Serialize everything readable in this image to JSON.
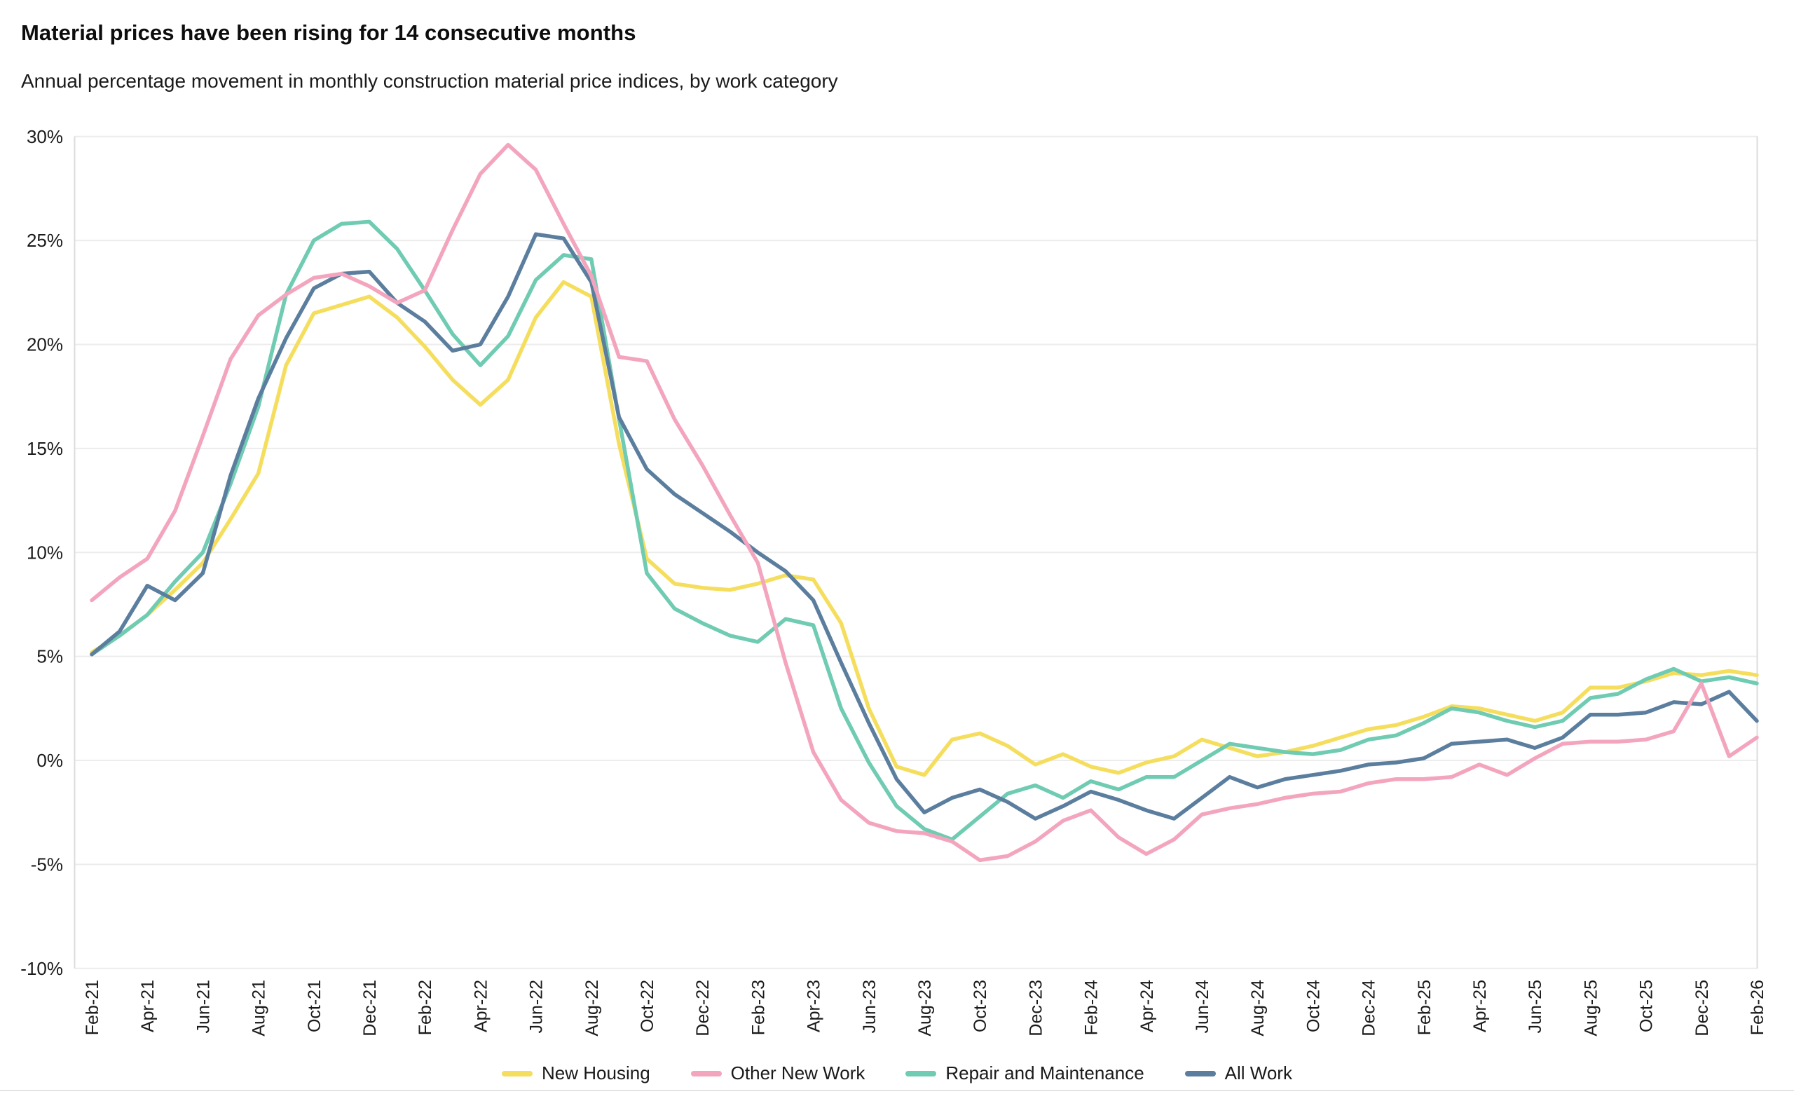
{
  "header": {
    "title": "Material prices have been rising for 14 consecutive months",
    "subtitle": "Annual percentage movement in monthly construction material price indices, by work category"
  },
  "chart_data": {
    "type": "line",
    "title": "Material prices have been rising for 14 consecutive months",
    "subtitle": "Annual percentage movement in monthly construction material price indices, by work category",
    "xlabel": "",
    "ylabel": "",
    "ylim": [
      -10,
      30
    ],
    "grid": true,
    "legend_position": "bottom",
    "y_ticks": [
      30,
      25,
      20,
      15,
      10,
      5,
      0,
      -5,
      -10
    ],
    "y_tick_suffix": "%",
    "x_tick_labels": [
      "Feb-21",
      "Apr-21",
      "Jun-21",
      "Aug-21",
      "Oct-21",
      "Dec-21",
      "Feb-22",
      "Apr-22",
      "Jun-22",
      "Aug-22",
      "Oct-22",
      "Dec-22",
      "Feb-23",
      "Apr-23",
      "Jun-23",
      "Aug-23",
      "Oct-23",
      "Dec-23",
      "Feb-24",
      "Apr-24",
      "Jun-24",
      "Aug-24",
      "Oct-24",
      "Dec-24",
      "Feb-25",
      "Apr-25",
      "Jun-25",
      "Aug-25",
      "Oct-25",
      "Dec-25",
      "Feb-26"
    ],
    "months": [
      "Feb-21",
      "Mar-21",
      "Apr-21",
      "May-21",
      "Jun-21",
      "Jul-21",
      "Aug-21",
      "Sep-21",
      "Oct-21",
      "Nov-21",
      "Dec-21",
      "Jan-22",
      "Feb-22",
      "Mar-22",
      "Apr-22",
      "May-22",
      "Jun-22",
      "Jul-22",
      "Aug-22",
      "Sep-22",
      "Oct-22",
      "Nov-22",
      "Dec-22",
      "Jan-23",
      "Feb-23",
      "Mar-23",
      "Apr-23",
      "May-23",
      "Jun-23",
      "Jul-23",
      "Aug-23",
      "Sep-23",
      "Oct-23",
      "Nov-23",
      "Dec-23",
      "Jan-24",
      "Feb-24",
      "Mar-24",
      "Apr-24",
      "May-24",
      "Jun-24",
      "Jul-24",
      "Aug-24",
      "Sep-24",
      "Oct-24",
      "Nov-24",
      "Dec-24",
      "Jan-25",
      "Feb-25",
      "Mar-25",
      "Apr-25",
      "May-25",
      "Jun-25",
      "Jul-25",
      "Aug-25",
      "Sep-25",
      "Oct-25",
      "Nov-25",
      "Dec-25",
      "Jan-26",
      "Feb-26"
    ],
    "series": [
      {
        "name": "New Housing",
        "color": "#F5DE5E",
        "values": [
          5.2,
          6.0,
          7.0,
          8.2,
          9.5,
          11.6,
          13.8,
          19.0,
          21.5,
          21.9,
          22.3,
          21.3,
          19.9,
          18.3,
          17.1,
          18.3,
          21.3,
          23.0,
          22.3,
          15.2,
          9.7,
          8.5,
          8.3,
          8.2,
          8.5,
          8.9,
          8.7,
          6.6,
          2.5,
          -0.3,
          -0.7,
          1.0,
          1.3,
          0.7,
          -0.2,
          0.3,
          -0.3,
          -0.6,
          -0.1,
          0.2,
          1.0,
          0.6,
          0.2,
          0.4,
          0.7,
          1.1,
          1.5,
          1.7,
          2.1,
          2.6,
          2.5,
          2.2,
          1.9,
          2.3,
          3.5,
          3.5,
          3.8,
          4.2,
          4.1,
          4.3,
          4.1
        ]
      },
      {
        "name": "Other New Work",
        "color": "#F4A5BE",
        "values": [
          7.7,
          8.8,
          9.7,
          12.0,
          15.6,
          19.3,
          21.4,
          22.4,
          23.2,
          23.4,
          22.8,
          22.0,
          22.6,
          25.5,
          28.2,
          29.6,
          28.4,
          25.8,
          23.3,
          19.4,
          19.2,
          16.4,
          14.2,
          11.8,
          9.5,
          4.7,
          0.4,
          -1.9,
          -3.0,
          -3.4,
          -3.5,
          -3.9,
          -4.8,
          -4.6,
          -3.9,
          -2.9,
          -2.4,
          -3.7,
          -4.5,
          -3.8,
          -2.6,
          -2.3,
          -2.1,
          -1.8,
          -1.6,
          -1.5,
          -1.1,
          -0.9,
          -0.9,
          -0.8,
          -0.2,
          -0.7,
          0.1,
          0.8,
          0.9,
          0.9,
          1.0,
          1.4,
          3.7,
          0.2,
          1.1
        ]
      },
      {
        "name": "Repair and Maintenance",
        "color": "#6FCBB2",
        "values": [
          5.1,
          6.0,
          7.0,
          8.6,
          10.0,
          13.3,
          17.0,
          22.4,
          25.0,
          25.8,
          25.9,
          24.6,
          22.6,
          20.5,
          19.0,
          20.4,
          23.1,
          24.3,
          24.1,
          16.4,
          9.0,
          7.3,
          6.6,
          6.0,
          5.7,
          6.8,
          6.5,
          2.5,
          -0.1,
          -2.2,
          -3.3,
          -3.8,
          -2.7,
          -1.6,
          -1.2,
          -1.8,
          -1.0,
          -1.4,
          -0.8,
          -0.8,
          0.0,
          0.8,
          0.6,
          0.4,
          0.3,
          0.5,
          1.0,
          1.2,
          1.8,
          2.5,
          2.3,
          1.9,
          1.6,
          1.9,
          3.0,
          3.2,
          3.9,
          4.4,
          3.8,
          4.0,
          3.7
        ]
      },
      {
        "name": "All Work",
        "color": "#5B7E9F",
        "values": [
          5.1,
          6.2,
          8.4,
          7.7,
          9.0,
          13.7,
          17.4,
          20.3,
          22.7,
          23.4,
          23.5,
          22.0,
          21.1,
          19.7,
          20.0,
          22.3,
          25.3,
          25.1,
          23.0,
          16.5,
          14.0,
          12.8,
          11.9,
          11.0,
          10.0,
          9.1,
          7.7,
          4.7,
          1.8,
          -0.9,
          -2.5,
          -1.8,
          -1.4,
          -2.0,
          -2.8,
          -2.2,
          -1.5,
          -1.9,
          -2.4,
          -2.8,
          -1.8,
          -0.8,
          -1.3,
          -0.9,
          -0.7,
          -0.5,
          -0.2,
          -0.1,
          0.1,
          0.8,
          0.9,
          1.0,
          0.6,
          1.1,
          2.2,
          2.2,
          2.3,
          2.8,
          2.7,
          3.3,
          1.9
        ]
      }
    ]
  },
  "colors": {
    "background": "#FFFFFF",
    "gridline": "#ECECEC",
    "axis_border": "#DCDCDC",
    "tick_label": "#1A1A1A",
    "title": "#0D0D0D"
  }
}
